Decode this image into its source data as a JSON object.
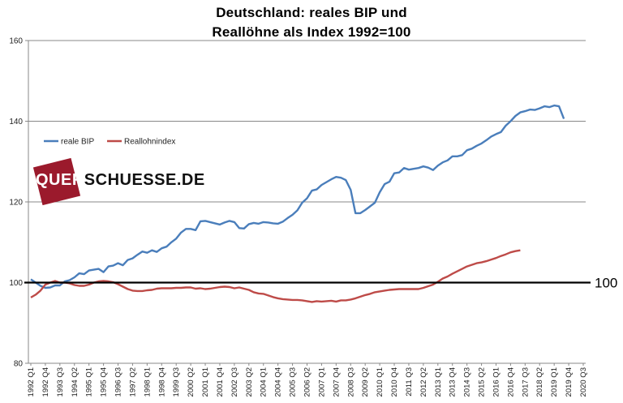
{
  "chart_data": {
    "type": "line",
    "title_line1": "Deutschland: reales BIP und",
    "title_line2": "Reallöhne als Index 1992=100",
    "ylim": [
      80,
      160
    ],
    "yticks": [
      "80",
      "100",
      "120",
      "140",
      "160"
    ],
    "reference_line": {
      "value": 100,
      "label": "100"
    },
    "watermark": {
      "part1": "QUER",
      "part2": "SCHUESSE.DE"
    },
    "x_tick_labels": [
      "1992 Q1",
      "1992 Q4",
      "1993 Q3",
      "1994 Q2",
      "1995 Q1",
      "1995 Q4",
      "1996 Q3",
      "1997 Q2",
      "1998 Q1",
      "1998 Q4",
      "1999 Q3",
      "2000 Q2",
      "2001 Q1",
      "2001 Q4",
      "2002 Q3",
      "2003 Q2",
      "2004 Q1",
      "2004 Q4",
      "2005 Q3",
      "2006 Q2",
      "2007 Q1",
      "2007 Q4",
      "2008 Q3",
      "2009 Q2",
      "2010 Q1",
      "2010 Q4",
      "2011 Q3",
      "2012 Q2",
      "2013 Q1",
      "2013 Q4",
      "2014 Q3",
      "2015 Q2",
      "2016 Q1",
      "2016 Q4",
      "2017 Q3",
      "2018 Q2",
      "2019 Q1",
      "2019 Q4",
      "2020 Q3"
    ],
    "series": [
      {
        "name": "reale BIP",
        "color": "#4a7ebb",
        "values": [
          100.8,
          100.0,
          99.2,
          98.7,
          98.8,
          99.3,
          99.3,
          100.3,
          100.6,
          101.3,
          102.3,
          102.1,
          103.0,
          103.2,
          103.4,
          102.6,
          104.0,
          104.2,
          104.8,
          104.3,
          105.6,
          106.0,
          106.9,
          107.7,
          107.4,
          108.0,
          107.6,
          108.5,
          108.9,
          110.0,
          110.9,
          112.4,
          113.3,
          113.3,
          113.0,
          115.2,
          115.3,
          115.0,
          114.7,
          114.4,
          114.9,
          115.3,
          115.0,
          113.5,
          113.4,
          114.5,
          114.8,
          114.6,
          115.0,
          114.9,
          114.7,
          114.6,
          115.1,
          116.0,
          116.8,
          117.9,
          119.8,
          120.9,
          122.8,
          123.1,
          124.2,
          124.9,
          125.6,
          126.2,
          126.0,
          125.4,
          123.0,
          117.2,
          117.2,
          118.0,
          118.9,
          119.8,
          122.4,
          124.4,
          125.0,
          127.1,
          127.3,
          128.4,
          128.0,
          128.2,
          128.4,
          128.8,
          128.5,
          127.9,
          129.0,
          129.8,
          130.3,
          131.3,
          131.3,
          131.6,
          132.8,
          133.2,
          133.9,
          134.5,
          135.3,
          136.2,
          136.8,
          137.3,
          138.9,
          140.0,
          141.3,
          142.2,
          142.5,
          142.9,
          142.8,
          143.2,
          143.7,
          143.5,
          143.9,
          143.7,
          140.6
        ]
      },
      {
        "name": "Reallohnindex",
        "color": "#be4b48",
        "values": [
          96.3,
          97.0,
          98.0,
          99.5,
          100.0,
          100.4,
          100.0,
          100.0,
          99.8,
          99.4,
          99.2,
          99.2,
          99.5,
          100.0,
          100.3,
          100.4,
          100.3,
          100.1,
          99.6,
          99.0,
          98.4,
          98.0,
          97.9,
          97.9,
          98.1,
          98.2,
          98.5,
          98.6,
          98.6,
          98.6,
          98.7,
          98.7,
          98.8,
          98.8,
          98.5,
          98.6,
          98.4,
          98.5,
          98.7,
          98.9,
          99.0,
          98.9,
          98.6,
          98.8,
          98.5,
          98.2,
          97.6,
          97.3,
          97.2,
          96.8,
          96.4,
          96.1,
          95.9,
          95.8,
          95.7,
          95.7,
          95.6,
          95.4,
          95.2,
          95.4,
          95.3,
          95.4,
          95.5,
          95.3,
          95.6,
          95.6,
          95.8,
          96.1,
          96.5,
          96.9,
          97.2,
          97.6,
          97.8,
          98.0,
          98.2,
          98.3,
          98.4,
          98.4,
          98.4,
          98.4,
          98.4,
          98.7,
          99.1,
          99.5,
          100.2,
          101.0,
          101.5,
          102.2,
          102.8,
          103.4,
          104.0,
          104.4,
          104.8,
          105.0,
          105.3,
          105.7,
          106.1,
          106.6,
          107.0,
          107.5,
          107.8,
          108.0
        ]
      }
    ]
  }
}
